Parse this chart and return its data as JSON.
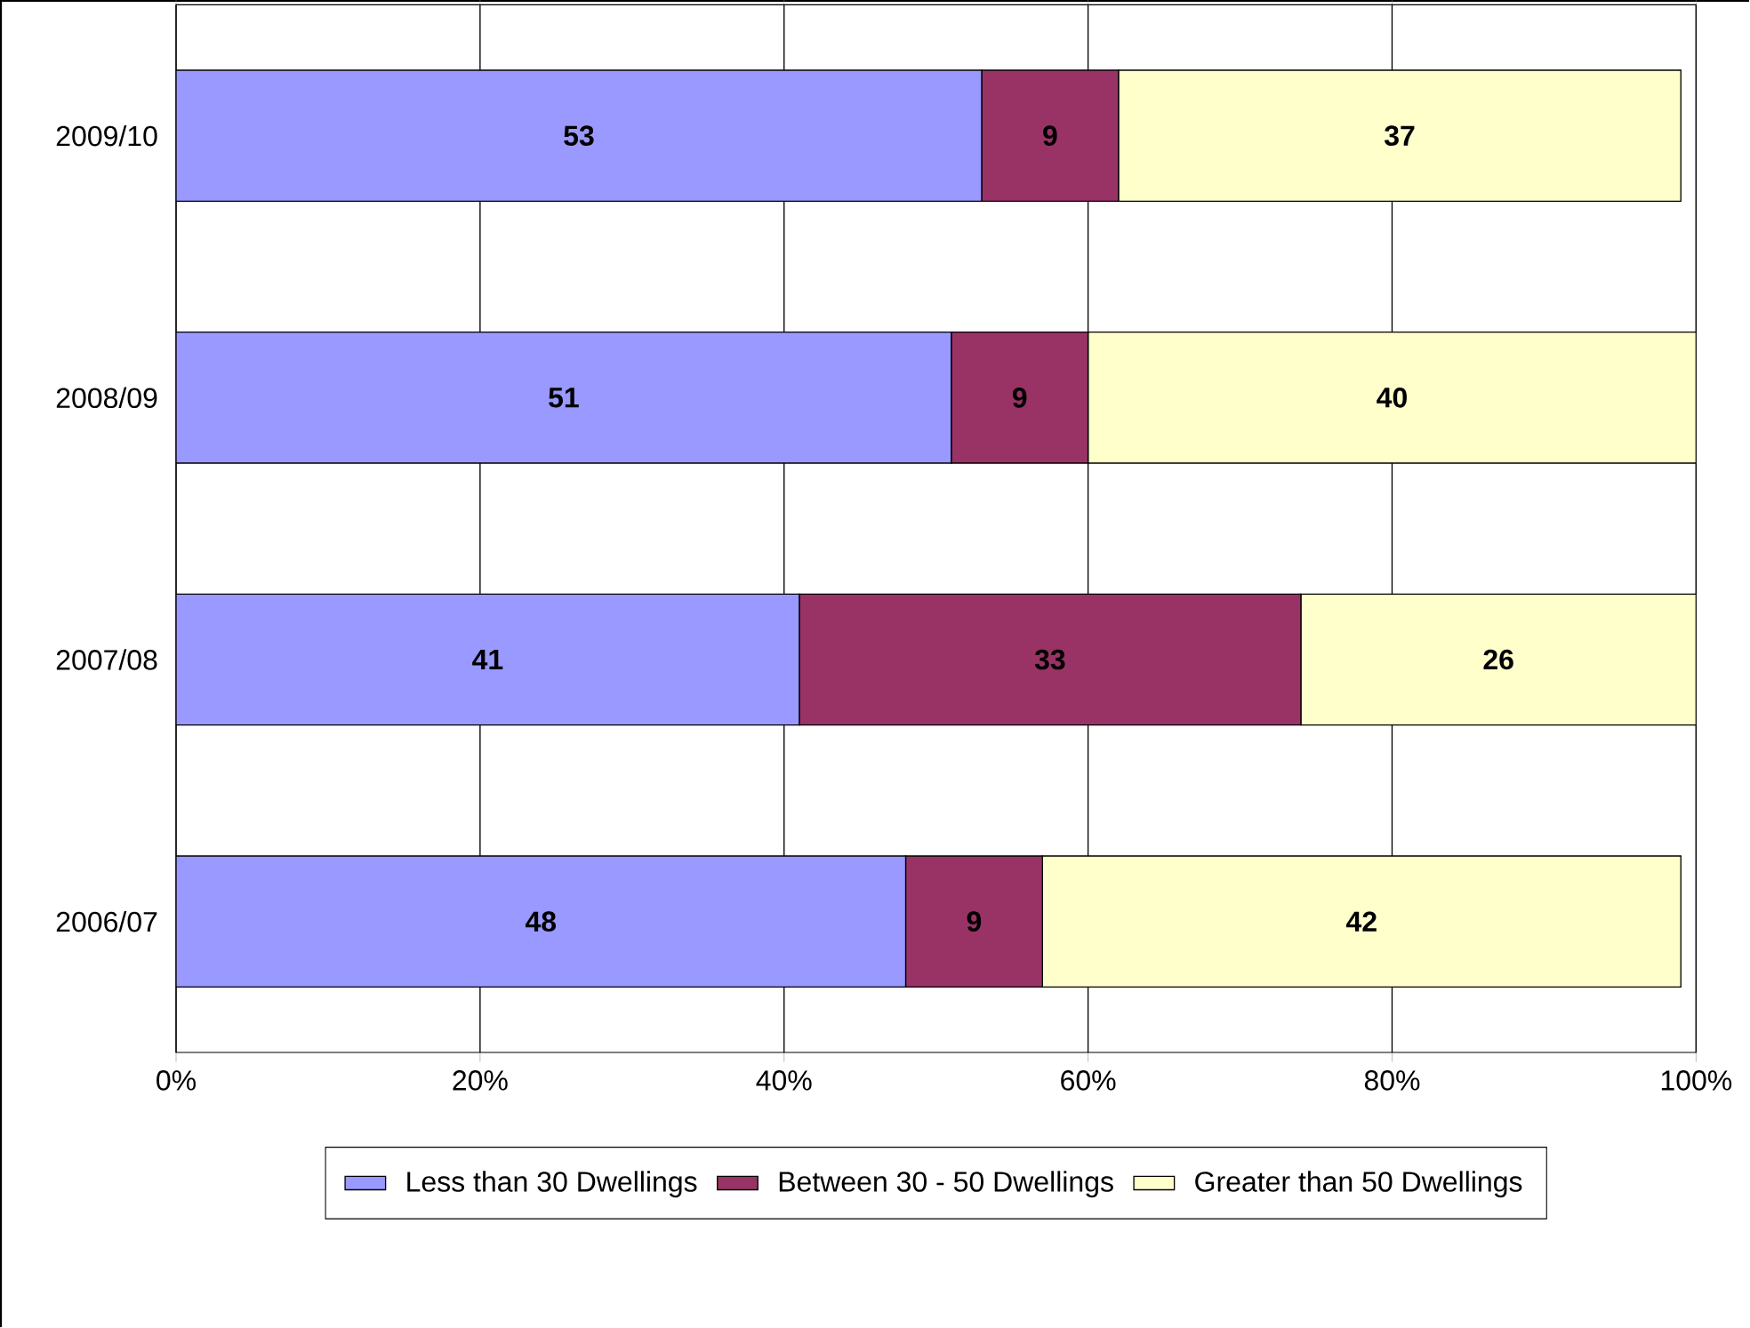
{
  "chart_data": {
    "type": "bar",
    "orientation": "horizontal",
    "stacked": true,
    "categories": [
      "2009/10",
      "2008/09",
      "2007/08",
      "2006/07"
    ],
    "series": [
      {
        "name": "Less than 30 Dwellings",
        "color": "#9999ff",
        "values": [
          53,
          51,
          41,
          48
        ]
      },
      {
        "name": "Between 30 - 50 Dwellings",
        "color": "#993366",
        "values": [
          9,
          9,
          33,
          9
        ]
      },
      {
        "name": "Greater than 50 Dwellings",
        "color": "#ffffcc",
        "values": [
          37,
          40,
          26,
          42
        ]
      }
    ],
    "xlim": [
      0,
      100
    ],
    "xticks": [
      {
        "value": 0,
        "label": "0%"
      },
      {
        "value": 20,
        "label": "20%"
      },
      {
        "value": 40,
        "label": "40%"
      },
      {
        "value": 60,
        "label": "60%"
      },
      {
        "value": 80,
        "label": "80%"
      },
      {
        "value": 100,
        "label": "100%"
      }
    ],
    "grid": "x",
    "legend": "bottom",
    "data_labels": true
  }
}
